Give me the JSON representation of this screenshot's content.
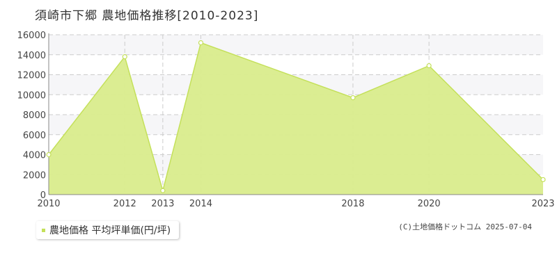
{
  "title": "須崎市下郷 農地価格推移[2010-2023]",
  "legend": {
    "label": "農地価格 平均坪単価(円/坪)"
  },
  "copyright": "(C)土地価格ドットコム 2025-07-04",
  "colors": {
    "fill": "#d9ec8c",
    "line": "#c4e05a",
    "grid": "#cccccc",
    "band": "#f6f6f8",
    "axis": "#888888"
  },
  "chart_data": {
    "type": "area",
    "title": "須崎市下郷 農地価格推移[2010-2023]",
    "xlabel": "",
    "ylabel": "",
    "x": [
      2010,
      2012,
      2013,
      2014,
      2018,
      2020,
      2023
    ],
    "x_tick_labels": [
      "2010",
      "2012",
      "2013",
      "2014",
      "2018",
      "2020",
      "2023"
    ],
    "ylim": [
      0,
      16000
    ],
    "y_ticks": [
      0,
      2000,
      4000,
      6000,
      8000,
      10000,
      12000,
      14000,
      16000
    ],
    "grid": true,
    "legend_position": "bottom-left",
    "series": [
      {
        "name": "農地価格 平均坪単価(円/坪)",
        "values": [
          4000,
          13800,
          400,
          15200,
          9700,
          12900,
          1500
        ]
      }
    ]
  }
}
